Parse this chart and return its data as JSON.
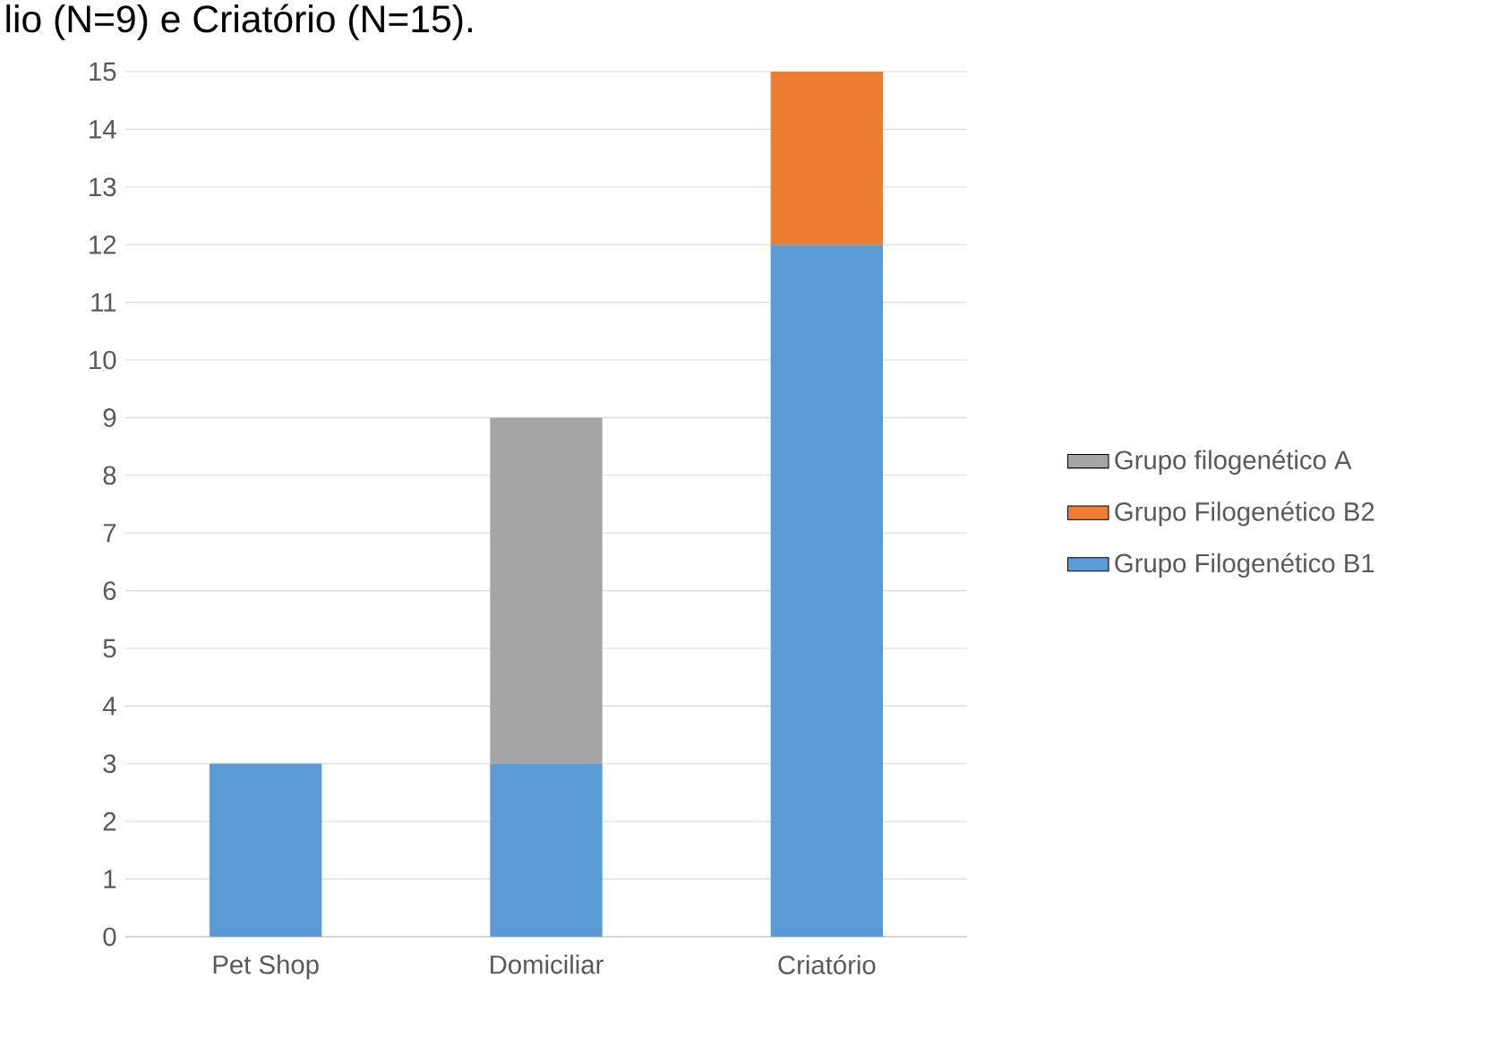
{
  "chart_data": {
    "type": "bar",
    "stacked": true,
    "annotations": [
      "lio (N=9) e Criatório (N=15)."
    ],
    "categories": [
      "Pet Shop",
      "Domiciliar",
      "Criatório"
    ],
    "series": [
      {
        "name": "Grupo Filogenético B1",
        "color": "#5b9bd5",
        "values": [
          3,
          3,
          12
        ]
      },
      {
        "name": "Grupo Filogenético B2",
        "color": "#ed7d31",
        "values": [
          null,
          null,
          3
        ]
      },
      {
        "name": "Grupo filogenético A",
        "color": "#a5a5a5",
        "values": [
          null,
          6,
          null
        ]
      }
    ],
    "ylim": [
      0,
      15
    ],
    "yticks": [
      0,
      1,
      2,
      3,
      4,
      5,
      6,
      7,
      8,
      9,
      10,
      11,
      12,
      13,
      14,
      15
    ],
    "grid": "y",
    "legend": "right"
  }
}
